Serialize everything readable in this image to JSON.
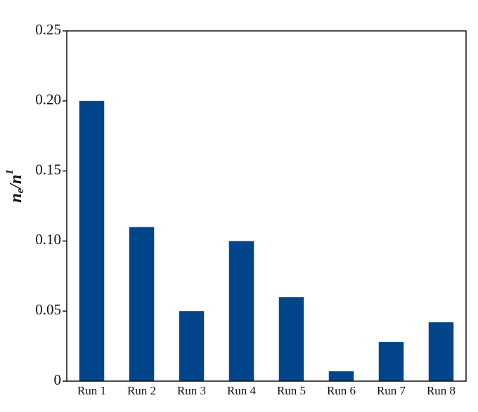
{
  "chart_data": {
    "type": "bar",
    "ylabel": [
      "n",
      "e",
      "/n",
      "1"
    ],
    "categories": [
      "Run 1",
      "Run 2",
      "Run 3",
      "Run 4",
      "Run 5",
      "Run 6",
      "Run 7",
      "Run 8"
    ],
    "values": [
      0.2,
      0.11,
      0.05,
      0.1,
      0.06,
      0.007,
      0.028,
      0.042
    ],
    "color": "#03458a",
    "ylim": [
      0,
      0.25
    ],
    "yticks": [
      0,
      0.05,
      {
        "value": 0.1,
        "label": "0.10"
      },
      0.15,
      {
        "value": 0.2,
        "label": "0.20"
      },
      0.25
    ],
    "grid": false
  }
}
